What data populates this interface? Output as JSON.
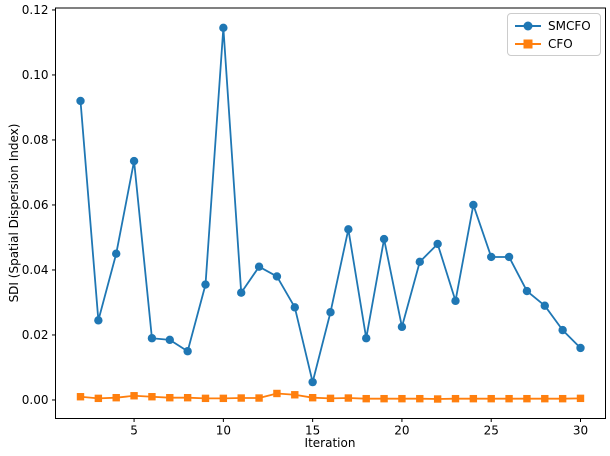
{
  "figure": {
    "background": "#ffffff",
    "axis_color": "#000000",
    "text_color": "#000000",
    "legend_border_color": "#cccccc"
  },
  "chart_data": {
    "type": "line",
    "title": "",
    "xlabel": "Iteration",
    "ylabel": "SDI (Spatial Dispersion Index)",
    "xlim": [
      0.6,
      31.4
    ],
    "ylim": [
      -0.0057,
      0.1206
    ],
    "x_tick_values": [
      5,
      10,
      15,
      20,
      25,
      30
    ],
    "x_tick_labels": [
      "5",
      "10",
      "15",
      "20",
      "25",
      "30"
    ],
    "y_tick_values": [
      0.0,
      0.02,
      0.04,
      0.06,
      0.08,
      0.1,
      0.12
    ],
    "y_tick_labels": [
      "0.00",
      "0.02",
      "0.04",
      "0.06",
      "0.08",
      "0.10",
      "0.12"
    ],
    "grid": false,
    "legend_position": "upper right",
    "x": [
      2,
      3,
      4,
      5,
      6,
      7,
      8,
      9,
      10,
      11,
      12,
      13,
      14,
      15,
      16,
      17,
      18,
      19,
      20,
      21,
      22,
      23,
      24,
      25,
      26,
      27,
      28,
      29,
      30
    ],
    "series": [
      {
        "name": "SMCFO",
        "color": "#1f77b4",
        "marker": "circle",
        "values": [
          0.092,
          0.0245,
          0.045,
          0.0735,
          0.019,
          0.0185,
          0.015,
          0.0355,
          0.1145,
          0.033,
          0.041,
          0.038,
          0.0285,
          0.0055,
          0.027,
          0.0525,
          0.019,
          0.0495,
          0.0225,
          0.0425,
          0.048,
          0.0305,
          0.06,
          0.044,
          0.044,
          0.0335,
          0.029,
          0.0215,
          0.016
        ]
      },
      {
        "name": "CFO",
        "color": "#ff7f0e",
        "marker": "square",
        "values": [
          0.001,
          0.0005,
          0.0007,
          0.0013,
          0.001,
          0.0007,
          0.0007,
          0.0005,
          0.0005,
          0.0006,
          0.0006,
          0.002,
          0.0016,
          0.0007,
          0.0005,
          0.0006,
          0.0004,
          0.0004,
          0.0004,
          0.0004,
          0.0003,
          0.0004,
          0.0004,
          0.0004,
          0.0004,
          0.0004,
          0.0004,
          0.0004,
          0.0005
        ]
      }
    ]
  }
}
